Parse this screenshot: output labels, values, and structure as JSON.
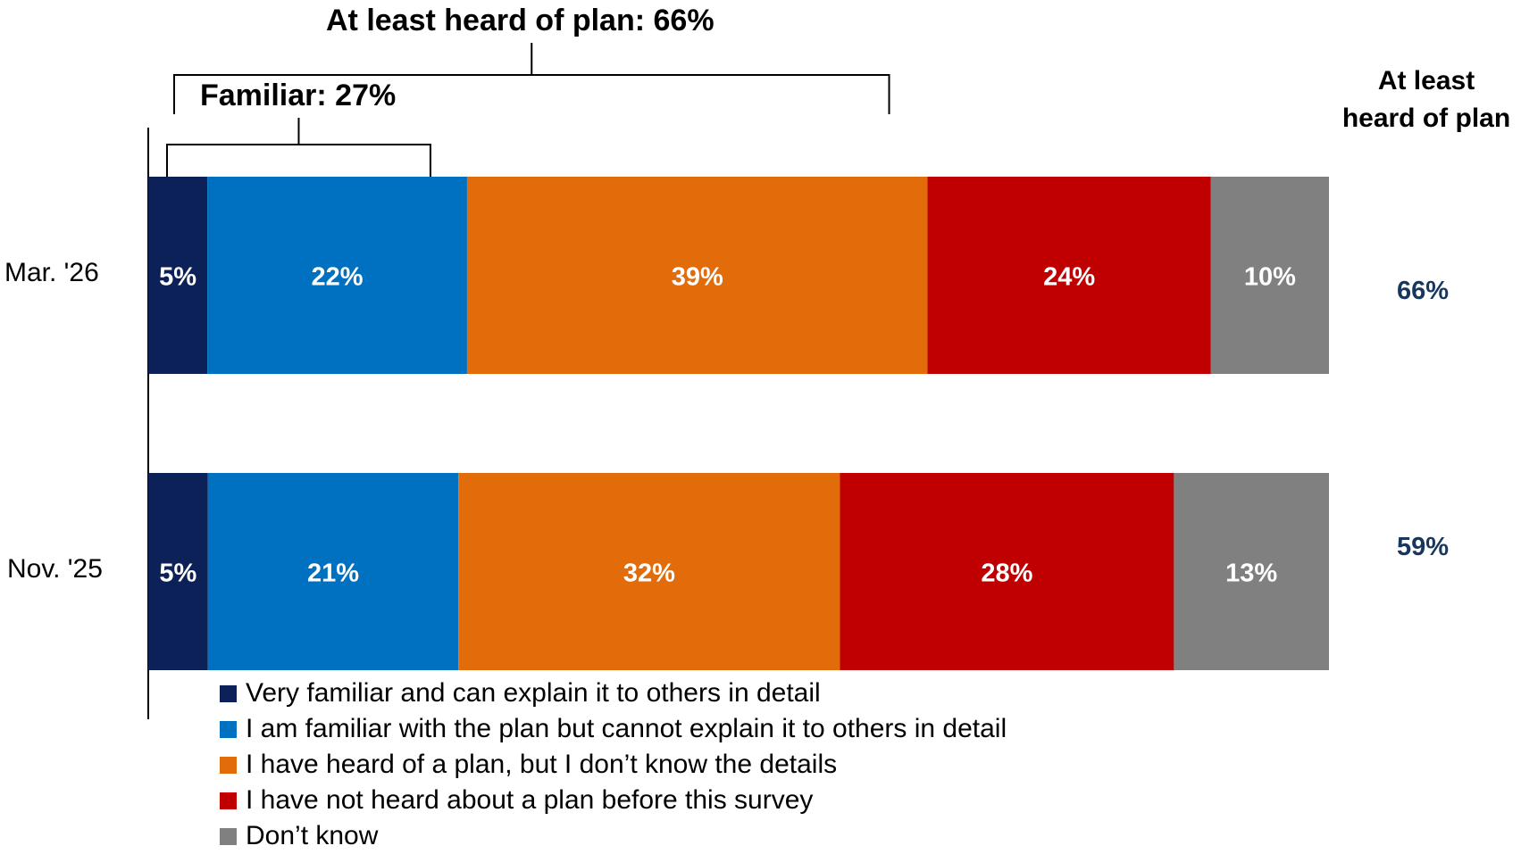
{
  "chart_data": {
    "type": "bar",
    "orientation": "horizontal",
    "stacked": true,
    "categories": [
      "Mar. '26",
      "Nov. '25"
    ],
    "series": [
      {
        "name": "Very familiar and can explain it to others in detail",
        "color": "#0b2158",
        "values": [
          5,
          5
        ],
        "labels": [
          "5%",
          "5%"
        ]
      },
      {
        "name": "I am familiar with the plan but cannot explain it to others in detail",
        "color": "#0070c0",
        "values": [
          22,
          21
        ],
        "labels": [
          "22%",
          "21%"
        ]
      },
      {
        "name": "I have heard of a plan, but I don’t know the details",
        "color": "#e26b0a",
        "values": [
          39,
          32
        ],
        "labels": [
          "39%",
          "32%"
        ]
      },
      {
        "name": "I have not heard about a plan before this survey",
        "color": "#c00000",
        "values": [
          24,
          28
        ],
        "labels": [
          "24%",
          "28%"
        ]
      },
      {
        "name": "Don’t know",
        "color": "#808080",
        "values": [
          10,
          13
        ],
        "labels": [
          "10%",
          "13%"
        ]
      }
    ],
    "right_column": {
      "header_line1": "At least",
      "header_line2": "heard of plan",
      "values": [
        "66%",
        "59%"
      ],
      "color": "#17375e"
    },
    "annotations": {
      "outer_bracket": "At least heard of plan: 66%",
      "inner_bracket": "Familiar: 27%"
    },
    "legend_position": "bottom",
    "grid": false
  }
}
